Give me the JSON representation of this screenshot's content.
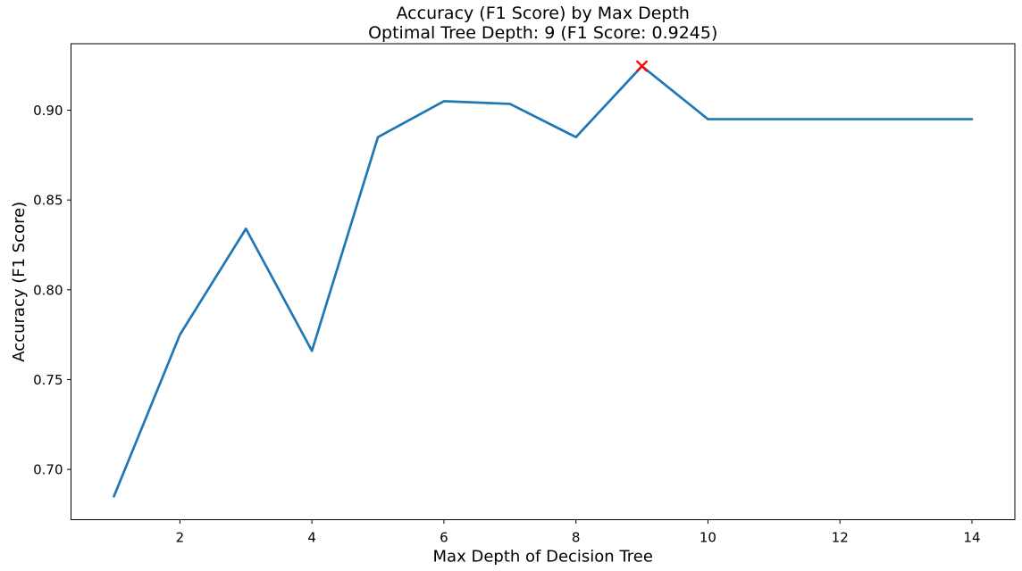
{
  "chart_data": {
    "type": "line",
    "title": "Accuracy (F1 Score) by Max Depth",
    "subtitle": "Optimal Tree Depth: 9 (F1 Score: 0.9245)",
    "xlabel": "Max Depth of Decision Tree",
    "ylabel": "Accuracy (F1 Score)",
    "x": [
      1,
      2,
      3,
      4,
      5,
      6,
      7,
      8,
      9,
      10,
      11,
      12,
      13,
      14
    ],
    "y": [
      0.685,
      0.775,
      0.834,
      0.766,
      0.885,
      0.905,
      0.9035,
      0.885,
      0.9245,
      0.895,
      0.895,
      0.895,
      0.895,
      0.895
    ],
    "optimal_point": {
      "x": 9,
      "y": 0.9245,
      "marker": "x",
      "color": "#ff0000"
    },
    "line_color": "#1f77b4",
    "spine_color": "#000000",
    "background_color": "#ffffff",
    "xlim": [
      0.35,
      14.65
    ],
    "ylim": [
      0.672,
      0.937
    ],
    "x_ticks": [
      2,
      4,
      6,
      8,
      10,
      12,
      14
    ],
    "y_ticks": [
      "0.70",
      "0.75",
      "0.80",
      "0.85",
      "0.90"
    ],
    "grid": false,
    "legend_position": "none"
  }
}
